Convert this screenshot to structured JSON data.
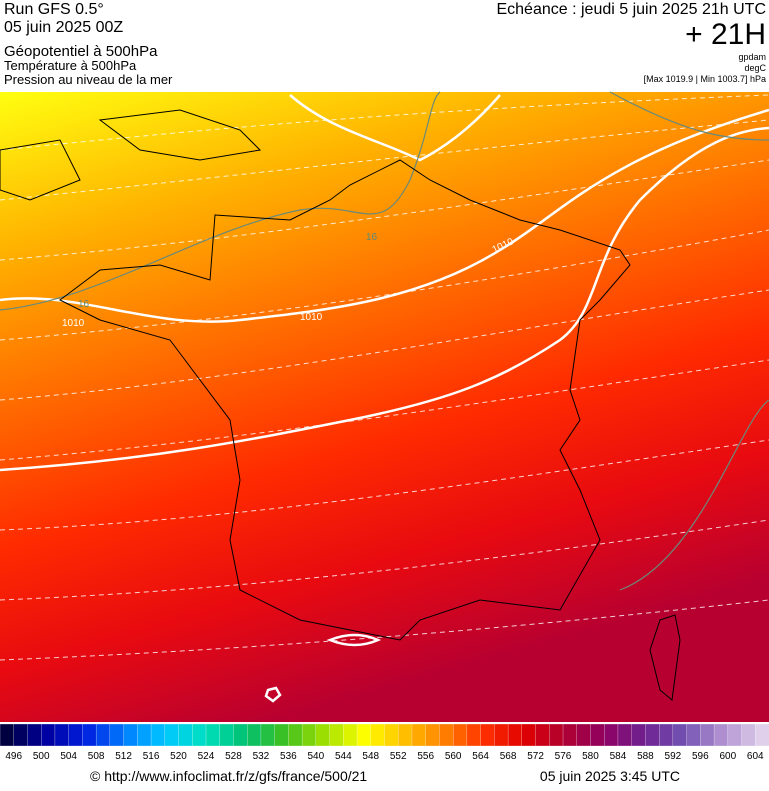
{
  "header": {
    "run": "Run GFS 0.5°",
    "run_date": "05 juin 2025 00Z",
    "layer1": "Géopotentiel à 500hPa",
    "layer2": "Température à 500hPa",
    "layer3": "Pression au niveau de la mer",
    "forecast": "Echéance : jeudi 5 juin 2025 21h UTC",
    "lead": "+ 21H",
    "unit1": "gpdam",
    "unit2": "degC",
    "range": "[Max 1019.9 | Min 1003.7] hPa"
  },
  "map": {
    "contour_labels": [
      "1010",
      "1010",
      "1010",
      "16",
      "16"
    ]
  },
  "colorbar": {
    "labels": [
      496,
      500,
      504,
      508,
      512,
      516,
      520,
      524,
      528,
      532,
      536,
      540,
      544,
      548,
      552,
      556,
      560,
      564,
      568,
      572,
      576,
      580,
      584,
      588,
      592,
      596,
      600,
      604
    ],
    "stops": [
      "#000040",
      "#0000a0",
      "#0020e0",
      "#0080ff",
      "#00c8ff",
      "#00e0c0",
      "#00c070",
      "#40c020",
      "#a0e000",
      "#ffff00",
      "#ffc000",
      "#ff8000",
      "#ff3000",
      "#e00000",
      "#b00030",
      "#900060",
      "#702090",
      "#7050b0",
      "#b090d0",
      "#e0d0ec"
    ]
  },
  "footer": {
    "url": "© http://www.infoclimat.fr/z/gfs/france/500/21",
    "date": "05 juin 2025  3:45 UTC"
  }
}
